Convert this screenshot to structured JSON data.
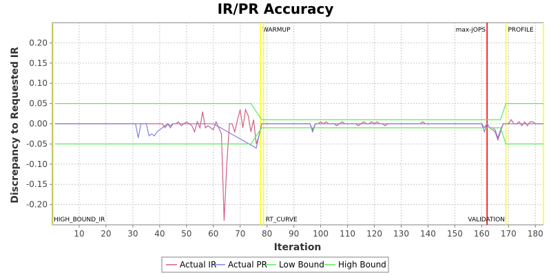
{
  "chart_data": {
    "type": "line",
    "title": "IR/PR Accuracy",
    "xlabel": "Iteration",
    "ylabel": "Discrepancy to Requested IR",
    "xlim": [
      0,
      183
    ],
    "ylim": [
      -0.25,
      0.25
    ],
    "x_ticks": [
      10,
      20,
      30,
      40,
      50,
      60,
      70,
      80,
      90,
      100,
      110,
      120,
      130,
      140,
      150,
      160,
      170,
      180
    ],
    "y_ticks": [
      -0.2,
      -0.15,
      -0.1,
      -0.05,
      0.0,
      0.05,
      0.1,
      0.15,
      0.2
    ],
    "y_tick_labels": [
      "-0.20",
      "-0.15",
      "-0.10",
      "-0.05",
      "0.00",
      "0.05",
      "0.10",
      "0.15",
      "0.20"
    ],
    "grid": true,
    "legend_position": "bottom",
    "markers": [
      {
        "label": "HIGH_BOUND_IR",
        "x": 0.3,
        "color": "#ffff00",
        "label_pos": "bottom"
      },
      {
        "label": "WARMUP",
        "x": 77.5,
        "color": "#ffff00",
        "label_pos": "top"
      },
      {
        "label": "RT_CURVE",
        "x": 78.7,
        "color": "#ffff00",
        "label_pos": "bottom"
      },
      {
        "label": "max-jOPS",
        "x": 162,
        "color": "#ff0000",
        "label_pos": "top"
      },
      {
        "label": "VALIDATION",
        "x": 162,
        "color": "#ff0000",
        "label_pos": "bottom"
      },
      {
        "label": "PROFILE",
        "x": 169,
        "color": "#ffff00",
        "label_pos": "top"
      },
      {
        "label": "",
        "x": 183,
        "color": "#ffff00",
        "label_pos": "none"
      }
    ],
    "series": [
      {
        "name": "Actual IR",
        "color": "#d06080",
        "points": [
          [
            1,
            0
          ],
          [
            31,
            0
          ],
          [
            32,
            0
          ],
          [
            33,
            0
          ],
          [
            34,
            0
          ],
          [
            35,
            0
          ],
          [
            36,
            0
          ],
          [
            37,
            0
          ],
          [
            38,
            0
          ],
          [
            39,
            0
          ],
          [
            40,
            0
          ],
          [
            41,
            0
          ],
          [
            42,
            -0.01
          ],
          [
            43,
            0
          ],
          [
            44,
            -0.01
          ],
          [
            45,
            0
          ],
          [
            46,
            0
          ],
          [
            47,
            0.005
          ],
          [
            48,
            -0.005
          ],
          [
            49,
            0
          ],
          [
            50,
            0.005
          ],
          [
            51,
            0
          ],
          [
            52,
            -0.005
          ],
          [
            53,
            -0.02
          ],
          [
            54,
            0.005
          ],
          [
            55,
            -0.01
          ],
          [
            56,
            0.03
          ],
          [
            57,
            -0.01
          ],
          [
            58,
            -0.005
          ],
          [
            59,
            -0.01
          ],
          [
            60,
            -0.015
          ],
          [
            61,
            0.005
          ],
          [
            62,
            -0.01
          ],
          [
            63,
            -0.025
          ],
          [
            64,
            -0.24
          ],
          [
            65,
            -0.1
          ],
          [
            66,
            0
          ],
          [
            67,
            0
          ],
          [
            68,
            -0.02
          ],
          [
            69,
            0.01
          ],
          [
            70,
            0.035
          ],
          [
            71,
            -0.01
          ],
          [
            72,
            0.035
          ],
          [
            73,
            0.02
          ],
          [
            74,
            -0.02
          ],
          [
            75,
            0.01
          ],
          [
            76,
            -0.05
          ],
          [
            77,
            -0.03
          ],
          [
            78,
            0
          ],
          [
            80,
            0
          ],
          [
            96,
            0
          ],
          [
            97,
            -0.015
          ],
          [
            98,
            0
          ],
          [
            99,
            0
          ],
          [
            100,
            0.005
          ],
          [
            101,
            0
          ],
          [
            102,
            0.005
          ],
          [
            103,
            0
          ],
          [
            104,
            0
          ],
          [
            105,
            0
          ],
          [
            106,
            -0.005
          ],
          [
            107,
            0
          ],
          [
            108,
            0.005
          ],
          [
            109,
            0
          ],
          [
            110,
            0
          ],
          [
            111,
            0
          ],
          [
            112,
            0
          ],
          [
            113,
            0
          ],
          [
            114,
            -0.005
          ],
          [
            115,
            0
          ],
          [
            116,
            0.005
          ],
          [
            117,
            0
          ],
          [
            118,
            0
          ],
          [
            119,
            0.005
          ],
          [
            120,
            0
          ],
          [
            121,
            0.005
          ],
          [
            122,
            0
          ],
          [
            123,
            0
          ],
          [
            124,
            -0.005
          ],
          [
            125,
            0
          ],
          [
            126,
            0
          ],
          [
            127,
            0
          ],
          [
            128,
            0
          ],
          [
            129,
            0
          ],
          [
            130,
            0
          ],
          [
            131,
            0
          ],
          [
            132,
            0
          ],
          [
            133,
            0
          ],
          [
            134,
            0
          ],
          [
            135,
            0
          ],
          [
            136,
            0
          ],
          [
            137,
            0
          ],
          [
            138,
            0.005
          ],
          [
            139,
            0
          ],
          [
            140,
            0
          ],
          [
            141,
            0
          ],
          [
            142,
            0
          ],
          [
            143,
            0
          ],
          [
            144,
            0
          ],
          [
            145,
            0
          ],
          [
            146,
            0
          ],
          [
            147,
            0
          ],
          [
            148,
            0
          ],
          [
            149,
            0
          ],
          [
            150,
            0
          ],
          [
            151,
            0
          ],
          [
            152,
            0
          ],
          [
            153,
            0
          ],
          [
            154,
            0
          ],
          [
            155,
            0
          ],
          [
            156,
            0
          ],
          [
            157,
            0
          ],
          [
            158,
            0
          ],
          [
            159,
            0
          ],
          [
            160,
            0
          ],
          [
            161,
            -0.01
          ],
          [
            162,
            0
          ],
          [
            163,
            -0.01
          ],
          [
            164,
            -0.015
          ],
          [
            165,
            -0.02
          ],
          [
            166,
            -0.04
          ],
          [
            167,
            -0.02
          ],
          [
            168,
            0
          ],
          [
            169,
            0
          ],
          [
            170,
            0
          ],
          [
            171,
            0.01
          ],
          [
            172,
            0
          ],
          [
            173,
            0
          ],
          [
            174,
            0.005
          ],
          [
            175,
            -0.005
          ],
          [
            176,
            0.005
          ],
          [
            177,
            -0.005
          ],
          [
            178,
            0.005
          ],
          [
            179,
            0.005
          ],
          [
            180,
            0
          ],
          [
            181,
            0
          ],
          [
            182,
            0
          ],
          [
            183,
            0
          ]
        ]
      },
      {
        "name": "Actual PR",
        "color": "#8080e0",
        "points": [
          [
            1,
            0
          ],
          [
            31,
            0
          ],
          [
            32,
            -0.035
          ],
          [
            33,
            0
          ],
          [
            34,
            0
          ],
          [
            35,
            0
          ],
          [
            36,
            -0.03
          ],
          [
            37,
            -0.025
          ],
          [
            38,
            -0.03
          ],
          [
            39,
            -0.02
          ],
          [
            40,
            -0.015
          ],
          [
            41,
            -0.01
          ],
          [
            42,
            -0.005
          ],
          [
            43,
            0
          ],
          [
            44,
            -0.005
          ],
          [
            45,
            0
          ],
          [
            60,
            0
          ],
          [
            76,
            -0.06
          ],
          [
            77,
            -0.03
          ],
          [
            78,
            0
          ],
          [
            96,
            0
          ],
          [
            97,
            -0.02
          ],
          [
            98,
            0
          ],
          [
            160,
            0
          ],
          [
            161,
            -0.02
          ],
          [
            162,
            0
          ],
          [
            163,
            -0.01
          ],
          [
            164,
            -0.01
          ],
          [
            165,
            -0.015
          ],
          [
            166,
            -0.035
          ],
          [
            167,
            -0.015
          ],
          [
            168,
            0
          ],
          [
            183,
            0
          ]
        ]
      },
      {
        "name": "Low Bound",
        "color": "#55ee55",
        "points": [
          [
            1,
            -0.05
          ],
          [
            74,
            -0.05
          ],
          [
            78,
            -0.01
          ],
          [
            167,
            -0.01
          ],
          [
            169,
            -0.05
          ],
          [
            183,
            -0.05
          ]
        ]
      },
      {
        "name": "High Bound",
        "color": "#55ee55",
        "points": [
          [
            1,
            0.05
          ],
          [
            74,
            0.05
          ],
          [
            78,
            0.01
          ],
          [
            167,
            0.01
          ],
          [
            169,
            0.05
          ],
          [
            183,
            0.05
          ]
        ]
      }
    ]
  }
}
